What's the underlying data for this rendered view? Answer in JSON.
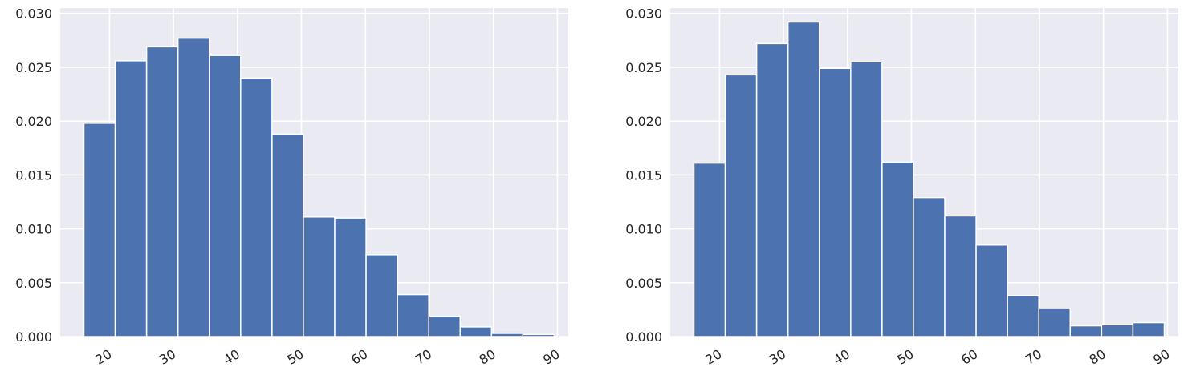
{
  "chart_data": [
    {
      "type": "bar",
      "title": "",
      "xlabel": "",
      "ylabel": "",
      "xlim": [
        12.3,
        91.7
      ],
      "ylim": [
        0,
        0.0305
      ],
      "xticks": [
        20,
        30,
        40,
        50,
        60,
        70,
        80,
        90
      ],
      "yticks": [
        0.0,
        0.005,
        0.01,
        0.015,
        0.02,
        0.025,
        0.03
      ],
      "ytick_labels": [
        "0.000",
        "0.005",
        "0.010",
        "0.015",
        "0.020",
        "0.025",
        "0.030"
      ],
      "bin_edges": [
        16.0,
        20.9,
        25.8,
        30.7,
        35.6,
        40.5,
        45.4,
        50.3,
        55.2,
        60.1,
        65.0,
        69.9,
        74.8,
        79.7,
        84.6,
        89.5
      ],
      "values": [
        0.0198,
        0.0256,
        0.0269,
        0.0277,
        0.0261,
        0.024,
        0.0188,
        0.0111,
        0.011,
        0.0076,
        0.0039,
        0.0019,
        0.0009,
        0.0003,
        0.0002
      ],
      "grid": true,
      "color": "#4c72b0"
    },
    {
      "type": "bar",
      "title": "",
      "xlabel": "",
      "ylabel": "",
      "xlim": [
        12.3,
        91.7
      ],
      "ylim": [
        0,
        0.0305
      ],
      "xticks": [
        20,
        30,
        40,
        50,
        60,
        70,
        80,
        90
      ],
      "yticks": [
        0.0,
        0.005,
        0.01,
        0.015,
        0.02,
        0.025,
        0.03
      ],
      "ytick_labels": [
        "0.000",
        "0.005",
        "0.010",
        "0.015",
        "0.020",
        "0.025",
        "0.030"
      ],
      "bin_edges": [
        16.0,
        20.9,
        25.8,
        30.7,
        35.6,
        40.5,
        45.4,
        50.3,
        55.2,
        60.1,
        65.0,
        69.9,
        74.8,
        79.7,
        84.6,
        89.5
      ],
      "values": [
        0.0161,
        0.0243,
        0.0272,
        0.0292,
        0.0249,
        0.0255,
        0.0162,
        0.0129,
        0.0112,
        0.0085,
        0.0038,
        0.0026,
        0.001,
        0.0011,
        0.0013
      ],
      "grid": true,
      "color": "#4c72b0"
    }
  ],
  "style": {
    "axes_facecolor": "#eaeaf2",
    "grid_color": "#ffffff",
    "bar_edge_color": "#ffffff",
    "text_color": "#262626"
  }
}
